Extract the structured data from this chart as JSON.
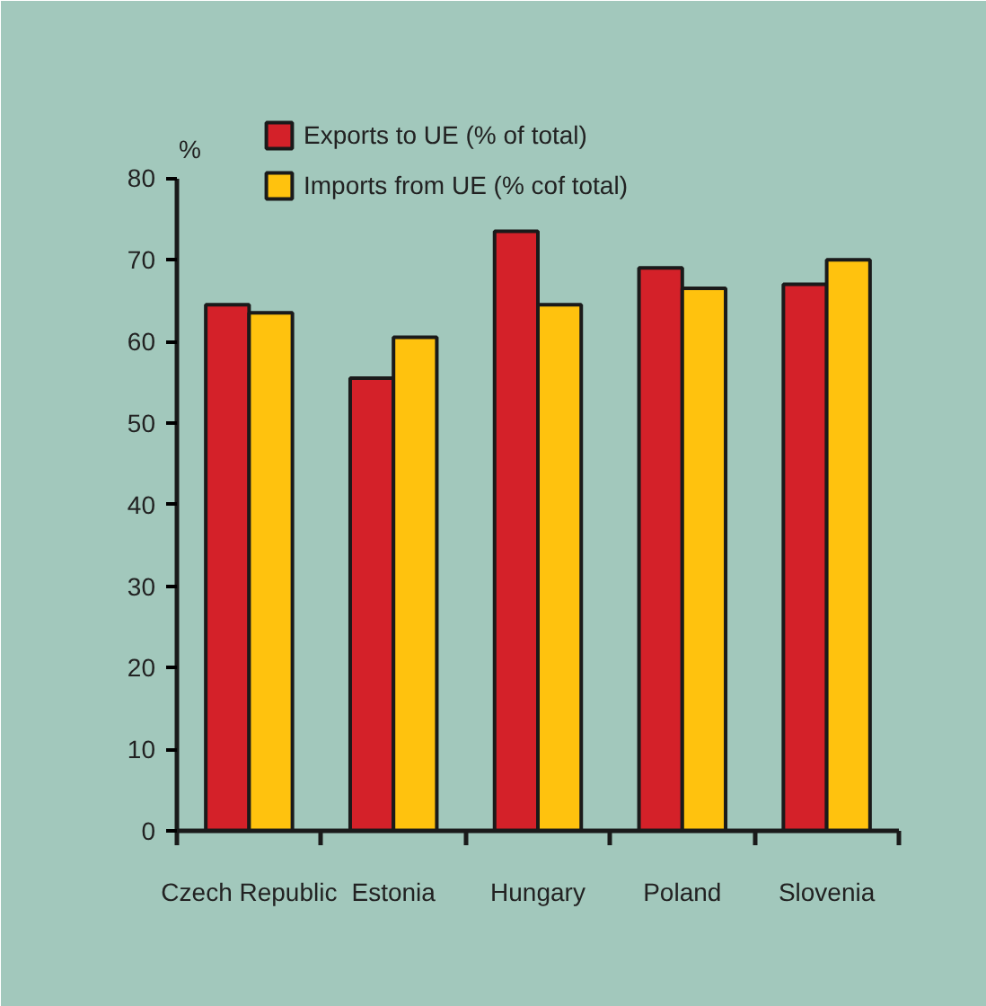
{
  "chart_data": {
    "type": "bar",
    "ylabel": "%",
    "categories": [
      "Czech Republic",
      "Estonia",
      "Hungary",
      "Poland",
      "Slovenia"
    ],
    "series": [
      {
        "name": "Exports to UE (% of total)",
        "color": "#d42129",
        "values": [
          64.5,
          55.5,
          73.5,
          69,
          67
        ]
      },
      {
        "name": "Imports from UE (% cof total)",
        "color": "#ffc20e",
        "values": [
          63.5,
          60.5,
          64.5,
          66.5,
          70
        ]
      }
    ],
    "ylim": [
      0,
      80
    ],
    "yticks": [
      0,
      10,
      20,
      30,
      40,
      50,
      60,
      70,
      80
    ],
    "grid": false,
    "legend": "top left"
  }
}
